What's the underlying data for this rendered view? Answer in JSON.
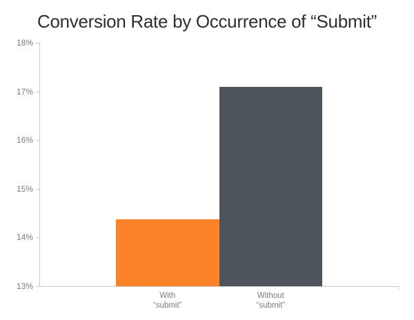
{
  "chart_data": {
    "type": "bar",
    "title": "Conversion Rate by Occurrence of “Submit”",
    "categories": [
      "With “submit”",
      "Without “submit”"
    ],
    "category_label_lines": [
      [
        "With",
        "“submit”"
      ],
      [
        "Without",
        "“submit”"
      ]
    ],
    "values": [
      14.37,
      17.1
    ],
    "bar_colors": [
      "#fb8228",
      "#4d545c"
    ],
    "ylabel": "",
    "xlabel": "",
    "ylim": [
      13,
      18
    ],
    "yticks": [
      13,
      14,
      15,
      16,
      17,
      18
    ],
    "ytick_labels": [
      "13%",
      "14%",
      "15%",
      "16%",
      "17%",
      "18%"
    ],
    "grid": false,
    "legend": false,
    "colors": {
      "axis_line": "#c9c9c9",
      "tick_label": "#7b7b7b",
      "title": "#2f2f2f",
      "background": "#ffffff"
    }
  }
}
